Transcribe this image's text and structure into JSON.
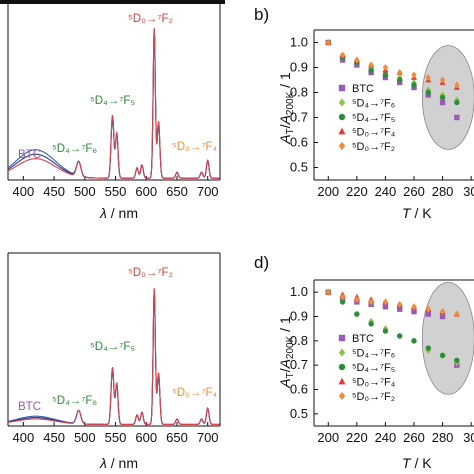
{
  "colors": {
    "btc": "#9b59b6",
    "d4f6": "#8bc34a",
    "d4f5": "#2e8b3a",
    "d0f4": "#e53935",
    "d0f2": "#f08c3a",
    "shade": "#c9c9c9"
  },
  "chart_data": [
    {
      "type": "line",
      "panel": "a",
      "xlabel_sym": "λ",
      "xlabel_unit": " / nm",
      "xticks": [
        400,
        450,
        500,
        550,
        600,
        650,
        700
      ],
      "xlim": [
        375,
        720
      ],
      "annotations": {
        "btc": "BTC",
        "d4f6": "⁵D₄→⁷F₆",
        "d4f5": "⁵D₄→⁷F₅",
        "d0f2": "⁵D₀→⁷F₂",
        "d0f4": "⁵D₀→⁷F₄"
      },
      "series": [
        {
          "color": "#3a5fb0",
          "btc_height": 0.19,
          "peak_scale": 0.97
        },
        {
          "color": "#2f3a8c",
          "btc_height": 0.16,
          "peak_scale": 0.99
        },
        {
          "color": "#d9434b",
          "btc_height": 0.13,
          "peak_scale": 1.0
        }
      ]
    },
    {
      "type": "scatter",
      "panel": "b",
      "panel_label": "b)",
      "xlabel_sym": "T",
      "xlabel_unit": " / K",
      "ylabel": "A_T/A_200K / 1",
      "xticks": [
        200,
        220,
        240,
        260,
        280,
        "30"
      ],
      "yticks": [
        "1.0",
        "0.9",
        "0.8",
        "0.7",
        "0.6",
        "0.5"
      ],
      "xlim": [
        190,
        302
      ],
      "ylim": [
        0.45,
        1.05
      ],
      "x": [
        200,
        210,
        220,
        230,
        240,
        250,
        260,
        270,
        280,
        290
      ],
      "series": [
        {
          "name": "BTC",
          "legend_text": "BTC",
          "marker": "square",
          "color": "#9b59b6",
          "values": [
            1.0,
            0.93,
            0.91,
            0.88,
            0.86,
            0.84,
            0.82,
            0.79,
            0.76,
            0.7
          ]
        },
        {
          "name": "5D4-7F6",
          "legend_text": "⁵D₄→⁷F₆",
          "marker": "diamond",
          "color": "#8bc34a",
          "values": [
            1.0,
            0.94,
            0.92,
            0.9,
            0.88,
            0.86,
            0.84,
            0.81,
            0.79,
            0.77
          ]
        },
        {
          "name": "5D4-7F5",
          "legend_text": "⁵D₄→⁷F₅",
          "marker": "circle",
          "color": "#2e8b3a",
          "values": [
            1.0,
            0.94,
            0.92,
            0.89,
            0.87,
            0.85,
            0.83,
            0.8,
            0.78,
            0.76
          ]
        },
        {
          "name": "5D0-7F4",
          "legend_text": "⁵D₀→⁷F₄",
          "marker": "triangle",
          "color": "#e53935",
          "values": [
            1.0,
            0.95,
            0.93,
            0.91,
            0.89,
            0.88,
            0.86,
            0.85,
            0.84,
            0.82
          ]
        },
        {
          "name": "5D0-7F2",
          "legend_text": "⁵D₀→⁷F₂",
          "marker": "diamond",
          "color": "#f08c3a",
          "values": [
            1.0,
            0.95,
            0.93,
            0.91,
            0.9,
            0.88,
            0.87,
            0.86,
            0.85,
            0.83
          ]
        }
      ]
    },
    {
      "type": "line",
      "panel": "c",
      "xlabel_sym": "λ",
      "xlabel_unit": " / nm",
      "xticks": [
        400,
        450,
        500,
        550,
        600,
        650,
        700
      ],
      "xlim": [
        375,
        720
      ],
      "annotations": {
        "btc": "BTC",
        "d4f6": "⁵D₄→⁷F₆",
        "d4f5": "⁵D₄→⁷F₅",
        "d0f2": "⁵D₀→⁷F₂",
        "d0f4": "⁵D₀→⁷F₄"
      },
      "series": [
        {
          "color": "#3a5fb0",
          "btc_height": 0.06,
          "peak_scale": 0.97
        },
        {
          "color": "#2f3a8c",
          "btc_height": 0.05,
          "peak_scale": 0.99
        },
        {
          "color": "#d9434b",
          "btc_height": 0.04,
          "peak_scale": 1.0
        }
      ]
    },
    {
      "type": "scatter",
      "panel": "d",
      "panel_label": "d)",
      "xlabel_sym": "T",
      "xlabel_unit": " / K",
      "ylabel": "A_T/A_200K / 1",
      "xticks": [
        200,
        220,
        240,
        260,
        280,
        "30"
      ],
      "yticks": [
        "1.0",
        "0.9",
        "0.8",
        "0.7",
        "0.6",
        "0.5"
      ],
      "xlim": [
        190,
        302
      ],
      "ylim": [
        0.45,
        1.05
      ],
      "x": [
        200,
        210,
        220,
        230,
        240,
        250,
        260,
        270,
        280,
        290
      ],
      "series": [
        {
          "name": "BTC",
          "legend_text": "BTC",
          "marker": "square",
          "color": "#9b59b6",
          "values": [
            1.0,
            0.97,
            0.96,
            0.95,
            0.94,
            0.93,
            0.92,
            0.91,
            0.9,
            0.7
          ]
        },
        {
          "name": "5D4-7F6",
          "legend_text": "⁵D₄→⁷F₆",
          "marker": "diamond",
          "color": "#8bc34a",
          "values": [
            1.0,
            0.96,
            0.91,
            0.88,
            0.85,
            0.82,
            0.8,
            0.76,
            0.74,
            0.71
          ]
        },
        {
          "name": "5D4-7F5",
          "legend_text": "⁵D₄→⁷F₅",
          "marker": "circle",
          "color": "#2e8b3a",
          "values": [
            1.0,
            0.96,
            0.91,
            0.87,
            0.84,
            0.82,
            0.8,
            0.77,
            0.74,
            0.72
          ]
        },
        {
          "name": "5D0-7F4",
          "legend_text": "⁵D₀→⁷F₄",
          "marker": "triangle",
          "color": "#e53935",
          "values": [
            1.0,
            0.99,
            0.98,
            0.97,
            0.96,
            0.95,
            0.94,
            0.93,
            0.92,
            0.91
          ]
        },
        {
          "name": "5D0-7F2",
          "legend_text": "⁵D₀→⁷F₂",
          "marker": "diamond",
          "color": "#f08c3a",
          "values": [
            1.0,
            0.98,
            0.97,
            0.96,
            0.96,
            0.95,
            0.94,
            0.93,
            0.92,
            0.91
          ]
        }
      ]
    }
  ]
}
